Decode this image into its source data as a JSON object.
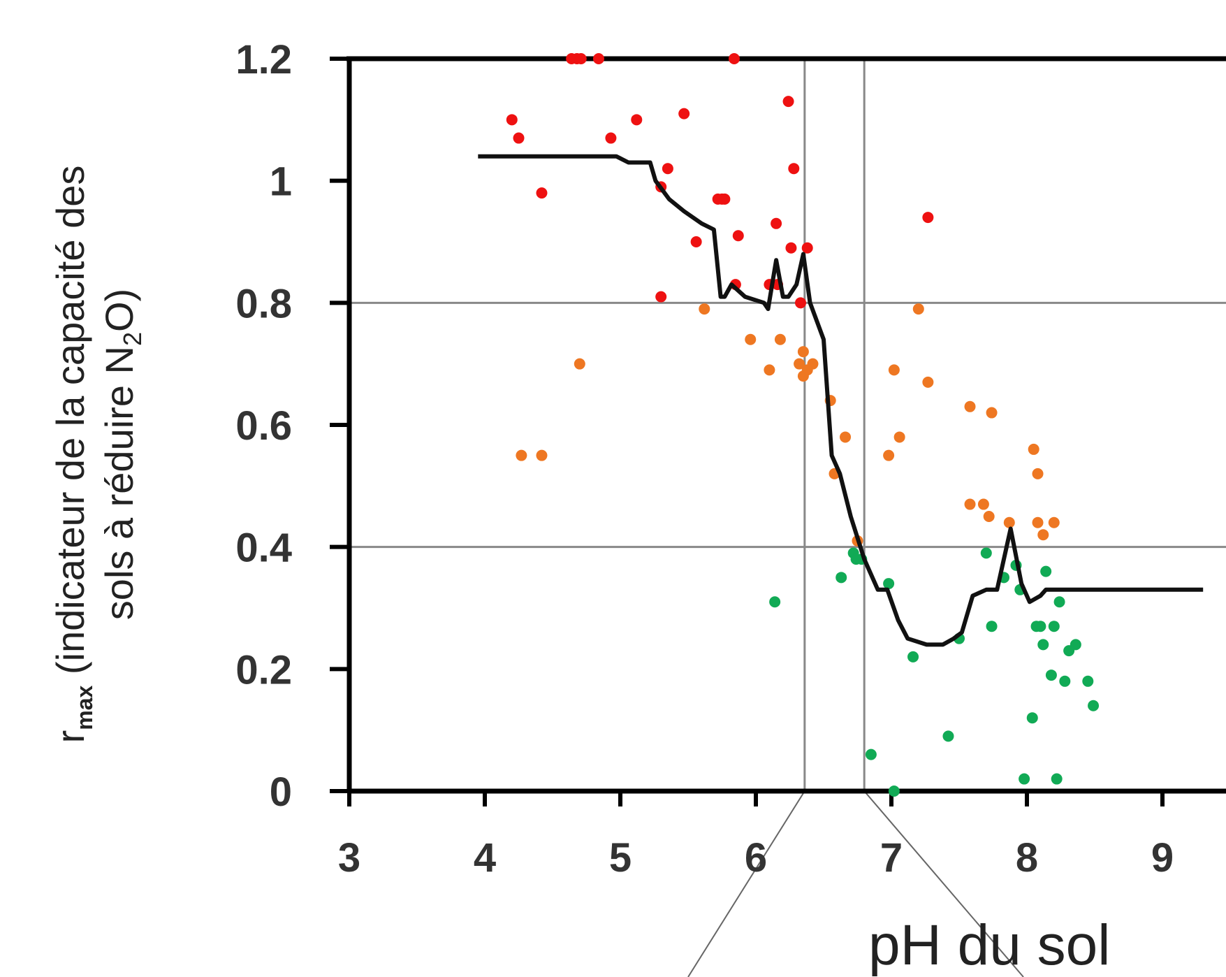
{
  "chart_data": {
    "type": "scatter",
    "title": "",
    "xlabel": "pH du sol",
    "ylabel": {
      "main": "r",
      "sub": "max",
      "rest1": " (indicateur de la capacité des",
      "rest2": "sols à réduire N",
      "chem_sub": "2",
      "rest3": "O)"
    },
    "xlim": [
      3,
      9
    ],
    "ylim": [
      0,
      1.2
    ],
    "xticks": [
      "3",
      "4",
      "5",
      "6",
      "7",
      "8",
      "9"
    ],
    "yticks": [
      "0",
      "0.2",
      "0.4",
      "0.6",
      "0.8",
      "1",
      "1.2"
    ],
    "grid": false,
    "colors": {
      "red": "#ee1111",
      "orange": "#ee7722",
      "green": "#11aa55",
      "line": "#111111",
      "refline": "#888888",
      "axis": "#000000"
    },
    "reference_lines": {
      "y": [
        0.8,
        0.4
      ],
      "x": [
        6.36,
        6.8
      ]
    },
    "series": [
      {
        "color_key": "red",
        "points": [
          [
            4.2,
            1.1
          ],
          [
            4.25,
            1.07
          ],
          [
            4.42,
            0.98
          ],
          [
            4.64,
            1.2
          ],
          [
            4.68,
            1.2
          ],
          [
            4.71,
            1.2
          ],
          [
            4.84,
            1.2
          ],
          [
            4.93,
            1.07
          ],
          [
            5.12,
            1.1
          ],
          [
            5.3,
            0.99
          ],
          [
            5.35,
            1.02
          ],
          [
            5.3,
            0.81
          ],
          [
            5.47,
            1.11
          ],
          [
            5.56,
            0.9
          ],
          [
            5.72,
            0.97
          ],
          [
            5.75,
            0.97
          ],
          [
            5.77,
            0.97
          ],
          [
            5.84,
            1.2
          ],
          [
            5.85,
            0.83
          ],
          [
            5.87,
            0.91
          ],
          [
            6.1,
            0.83
          ],
          [
            6.15,
            0.93
          ],
          [
            6.16,
            0.83
          ],
          [
            6.24,
            1.13
          ],
          [
            6.26,
            0.89
          ],
          [
            6.28,
            1.02
          ],
          [
            6.33,
            0.8
          ],
          [
            6.38,
            0.89
          ],
          [
            7.27,
            0.94
          ]
        ]
      },
      {
        "color_key": "orange",
        "points": [
          [
            4.27,
            0.55
          ],
          [
            4.42,
            0.55
          ],
          [
            4.7,
            0.7
          ],
          [
            5.62,
            0.79
          ],
          [
            5.96,
            0.74
          ],
          [
            6.1,
            0.69
          ],
          [
            6.18,
            0.74
          ],
          [
            6.32,
            0.7
          ],
          [
            6.35,
            0.72
          ],
          [
            6.35,
            0.68
          ],
          [
            6.38,
            0.69
          ],
          [
            6.42,
            0.7
          ],
          [
            6.55,
            0.64
          ],
          [
            6.58,
            0.52
          ],
          [
            6.66,
            0.58
          ],
          [
            6.75,
            0.41
          ],
          [
            6.98,
            0.55
          ],
          [
            7.02,
            0.69
          ],
          [
            7.06,
            0.58
          ],
          [
            7.2,
            0.79
          ],
          [
            7.27,
            0.67
          ],
          [
            7.58,
            0.63
          ],
          [
            7.58,
            0.47
          ],
          [
            7.68,
            0.47
          ],
          [
            7.72,
            0.45
          ],
          [
            7.74,
            0.62
          ],
          [
            7.87,
            0.44
          ],
          [
            8.05,
            0.56
          ],
          [
            8.08,
            0.52
          ],
          [
            8.08,
            0.44
          ],
          [
            8.12,
            0.42
          ],
          [
            8.2,
            0.44
          ]
        ]
      },
      {
        "color_key": "green",
        "points": [
          [
            6.14,
            0.31
          ],
          [
            6.63,
            0.35
          ],
          [
            6.72,
            0.39
          ],
          [
            6.74,
            0.38
          ],
          [
            6.78,
            0.38
          ],
          [
            6.85,
            0.06
          ],
          [
            6.98,
            0.34
          ],
          [
            7.02,
            0.0
          ],
          [
            7.16,
            0.22
          ],
          [
            7.42,
            0.09
          ],
          [
            7.5,
            0.25
          ],
          [
            7.7,
            0.39
          ],
          [
            7.74,
            0.27
          ],
          [
            7.83,
            0.35
          ],
          [
            7.92,
            0.37
          ],
          [
            7.95,
            0.33
          ],
          [
            7.98,
            0.02
          ],
          [
            8.04,
            0.12
          ],
          [
            8.07,
            0.27
          ],
          [
            8.1,
            0.27
          ],
          [
            8.12,
            0.24
          ],
          [
            8.14,
            0.36
          ],
          [
            8.18,
            0.19
          ],
          [
            8.2,
            0.27
          ],
          [
            8.22,
            0.02
          ],
          [
            8.24,
            0.31
          ],
          [
            8.28,
            0.18
          ],
          [
            8.31,
            0.23
          ],
          [
            8.36,
            0.24
          ],
          [
            8.45,
            0.18
          ],
          [
            8.49,
            0.14
          ]
        ]
      }
    ],
    "smooth_line": [
      [
        3.95,
        1.04
      ],
      [
        4.97,
        1.04
      ],
      [
        5.06,
        1.03
      ],
      [
        5.22,
        1.03
      ],
      [
        5.26,
        1.0
      ],
      [
        5.36,
        0.97
      ],
      [
        5.47,
        0.95
      ],
      [
        5.6,
        0.93
      ],
      [
        5.69,
        0.92
      ],
      [
        5.74,
        0.81
      ],
      [
        5.77,
        0.81
      ],
      [
        5.82,
        0.83
      ],
      [
        5.92,
        0.81
      ],
      [
        6.06,
        0.8
      ],
      [
        6.09,
        0.79
      ],
      [
        6.12,
        0.83
      ],
      [
        6.15,
        0.87
      ],
      [
        6.2,
        0.81
      ],
      [
        6.24,
        0.81
      ],
      [
        6.3,
        0.83
      ],
      [
        6.35,
        0.88
      ],
      [
        6.4,
        0.8
      ],
      [
        6.45,
        0.77
      ],
      [
        6.5,
        0.74
      ],
      [
        6.56,
        0.55
      ],
      [
        6.62,
        0.52
      ],
      [
        6.7,
        0.45
      ],
      [
        6.8,
        0.38
      ],
      [
        6.9,
        0.33
      ],
      [
        6.97,
        0.33
      ],
      [
        7.05,
        0.28
      ],
      [
        7.12,
        0.25
      ],
      [
        7.26,
        0.24
      ],
      [
        7.38,
        0.24
      ],
      [
        7.46,
        0.25
      ],
      [
        7.52,
        0.26
      ],
      [
        7.6,
        0.32
      ],
      [
        7.7,
        0.33
      ],
      [
        7.78,
        0.33
      ],
      [
        7.88,
        0.43
      ],
      [
        7.96,
        0.34
      ],
      [
        8.02,
        0.31
      ],
      [
        8.1,
        0.32
      ],
      [
        8.14,
        0.33
      ],
      [
        9.0,
        0.33
      ],
      [
        9.3,
        0.33
      ]
    ]
  }
}
